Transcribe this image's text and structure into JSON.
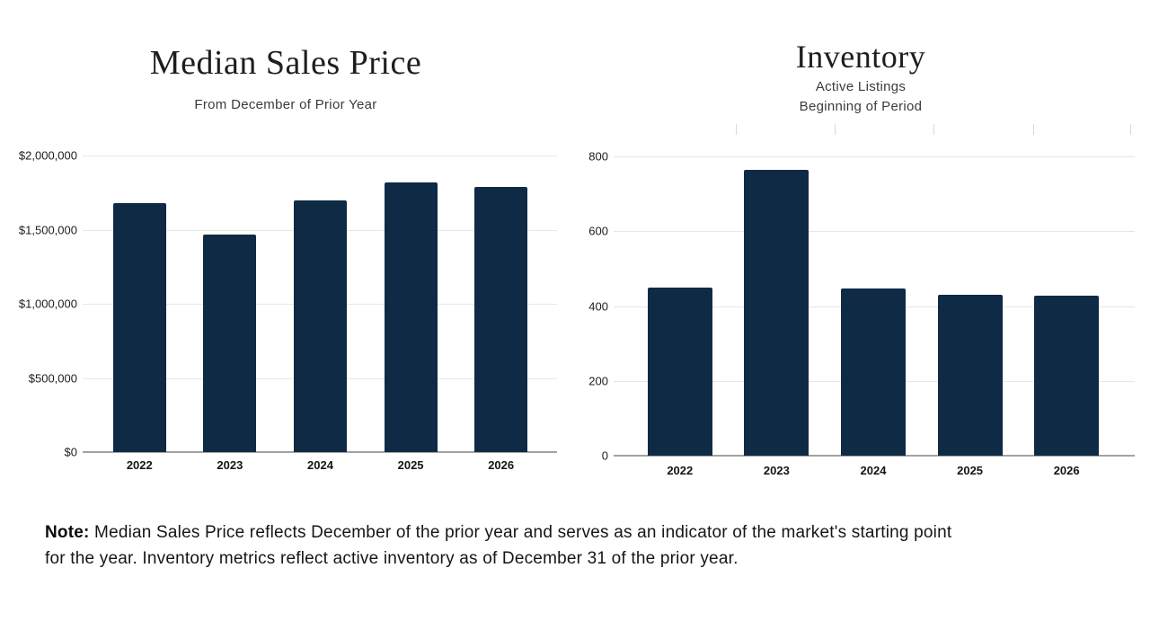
{
  "page": {
    "background": "#ffffff"
  },
  "chart_data": [
    {
      "id": "median-sales-price",
      "type": "bar",
      "title": "Median Sales Price",
      "subtitle_lines": [
        "From December of Prior Year"
      ],
      "categories": [
        "2022",
        "2023",
        "2024",
        "2025",
        "2026"
      ],
      "values": [
        1680000,
        1465000,
        1695000,
        1820000,
        1790000
      ],
      "ylim": [
        0,
        2000000
      ],
      "ytick_labels": [
        "$2,000,000",
        "$1,500,000",
        "$1,000,000",
        "$500,000",
        "$0"
      ],
      "xlabel": "",
      "ylabel": "",
      "grid": true,
      "legend": "none",
      "bar_color": "#0f2a44"
    },
    {
      "id": "inventory",
      "type": "bar",
      "title": "Inventory",
      "subtitle_lines": [
        "Active Listings",
        "Beginning of Period"
      ],
      "categories": [
        "2022",
        "2023",
        "2024",
        "2025",
        "2026"
      ],
      "values": [
        450,
        765,
        446,
        431,
        428
      ],
      "ylim": [
        0,
        800
      ],
      "ytick_labels": [
        "800",
        "600",
        "400",
        "200",
        "0"
      ],
      "xlabel": "",
      "ylabel": "",
      "grid": true,
      "legend": "none",
      "bar_color": "#0f2a44",
      "top_tick_positions_pct": [
        23.4,
        42.4,
        61.4,
        80.5,
        99.1
      ]
    }
  ],
  "note": {
    "label": "Note:",
    "line1": " Median Sales Price reflects December of the prior year and serves as an indicator of the market's starting point",
    "line2": "for the year. Inventory metrics reflect active inventory as of December 31 of the prior year."
  },
  "colors": {
    "bar": "#0f2a44",
    "gridline": "#e7e7e7",
    "axis": "#a2a2a2",
    "title_text": "#1e1e1e",
    "subtitle_text": "#3b3b3b",
    "note_text": "#161616"
  }
}
